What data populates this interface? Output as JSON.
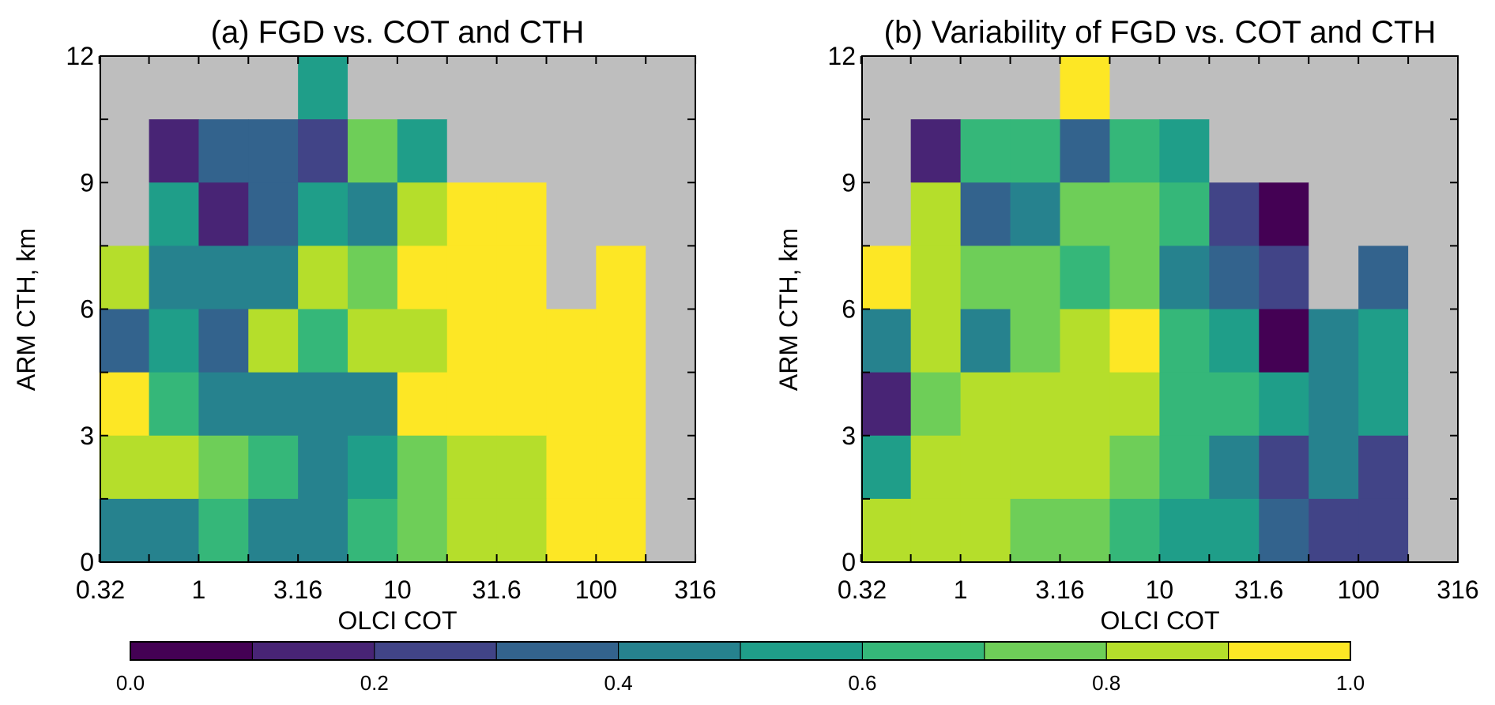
{
  "figure": {
    "colorbar": {
      "ticks": [
        0.0,
        0.2,
        0.4,
        0.6,
        0.8,
        1.0
      ],
      "tick_labels": [
        "0.0",
        "0.2",
        "0.4",
        "0.6",
        "0.8",
        "1.0"
      ],
      "bins": [
        0.0,
        0.1,
        0.2,
        0.3,
        0.4,
        0.5,
        0.6,
        0.7,
        0.8,
        0.9,
        1.0
      ],
      "colors": [
        "#440154",
        "#482475",
        "#414487",
        "#33638d",
        "#26828e",
        "#1f9e89",
        "#35b779",
        "#6ece58",
        "#b5de2b",
        "#fde725"
      ],
      "missing_color": "#bebebe"
    }
  },
  "chart_data": [
    {
      "type": "heatmap",
      "title": "(a) FGD vs. COT and CTH",
      "xlabel": "OLCI COT",
      "ylabel": "ARM CTH, km",
      "x_scale": "log",
      "x_tick_values": [
        0.32,
        1,
        3.16,
        10,
        31.6,
        100,
        316
      ],
      "x_tick_labels": [
        "0.32",
        "1",
        "3.16",
        "10",
        "31.6",
        "100",
        "316"
      ],
      "x_bin_edges_log10": [
        -0.5,
        -0.25,
        0,
        0.25,
        0.5,
        0.75,
        1,
        1.25,
        1.5,
        1.75,
        2,
        2.25,
        2.5
      ],
      "y_tick_values": [
        0,
        3,
        6,
        9,
        12
      ],
      "y_tick_labels": [
        "0",
        "3",
        "6",
        "9",
        "12"
      ],
      "y_bin_edges": [
        0,
        1.5,
        3,
        4.5,
        6,
        7.5,
        9,
        10.5,
        12
      ],
      "xlim": [
        0.32,
        316
      ],
      "ylim": [
        0,
        12
      ],
      "value_range": [
        0,
        1
      ],
      "rows_top_to_bottom": [
        [
          null,
          null,
          null,
          null,
          0.55,
          null,
          null,
          null,
          null,
          null,
          null,
          null
        ],
        [
          null,
          0.15,
          0.35,
          0.35,
          0.25,
          0.75,
          0.55,
          null,
          null,
          null,
          null,
          null
        ],
        [
          null,
          0.55,
          0.15,
          0.35,
          0.55,
          0.45,
          0.85,
          0.95,
          0.95,
          null,
          null,
          null
        ],
        [
          0.85,
          0.45,
          0.45,
          0.45,
          0.85,
          0.75,
          0.95,
          0.95,
          0.95,
          null,
          0.95,
          null
        ],
        [
          0.35,
          0.55,
          0.35,
          0.85,
          0.65,
          0.85,
          0.85,
          0.95,
          0.95,
          0.95,
          0.95,
          null
        ],
        [
          0.95,
          0.65,
          0.45,
          0.45,
          0.45,
          0.45,
          0.95,
          0.95,
          0.95,
          0.95,
          0.95,
          null
        ],
        [
          0.85,
          0.85,
          0.75,
          0.65,
          0.45,
          0.55,
          0.75,
          0.85,
          0.85,
          0.95,
          0.95,
          null
        ],
        [
          0.45,
          0.45,
          0.65,
          0.45,
          0.45,
          0.65,
          0.75,
          0.85,
          0.85,
          0.95,
          0.95,
          null
        ]
      ]
    },
    {
      "type": "heatmap",
      "title": "(b) Variability of FGD vs. COT and CTH",
      "xlabel": "OLCI COT",
      "ylabel": "ARM CTH, km",
      "x_scale": "log",
      "x_tick_values": [
        0.32,
        1,
        3.16,
        10,
        31.6,
        100,
        316
      ],
      "x_tick_labels": [
        "0.32",
        "1",
        "3.16",
        "10",
        "31.6",
        "100",
        "316"
      ],
      "x_bin_edges_log10": [
        -0.5,
        -0.25,
        0,
        0.25,
        0.5,
        0.75,
        1,
        1.25,
        1.5,
        1.75,
        2,
        2.25,
        2.5
      ],
      "y_tick_values": [
        0,
        3,
        6,
        9,
        12
      ],
      "y_tick_labels": [
        "0",
        "3",
        "6",
        "9",
        "12"
      ],
      "y_bin_edges": [
        0,
        1.5,
        3,
        4.5,
        6,
        7.5,
        9,
        10.5,
        12
      ],
      "xlim": [
        0.32,
        316
      ],
      "ylim": [
        0,
        12
      ],
      "value_range": [
        0,
        1
      ],
      "rows_top_to_bottom": [
        [
          null,
          null,
          null,
          null,
          0.95,
          null,
          null,
          null,
          null,
          null,
          null,
          null
        ],
        [
          null,
          0.15,
          0.65,
          0.65,
          0.35,
          0.65,
          0.55,
          null,
          null,
          null,
          null,
          null
        ],
        [
          null,
          0.85,
          0.35,
          0.45,
          0.75,
          0.75,
          0.65,
          0.25,
          0.05,
          null,
          null,
          null
        ],
        [
          0.95,
          0.85,
          0.75,
          0.75,
          0.65,
          0.75,
          0.45,
          0.35,
          0.25,
          null,
          0.35,
          null
        ],
        [
          0.45,
          0.85,
          0.45,
          0.75,
          0.85,
          0.95,
          0.65,
          0.55,
          0.05,
          0.45,
          0.55,
          null
        ],
        [
          0.15,
          0.75,
          0.85,
          0.85,
          0.85,
          0.85,
          0.65,
          0.65,
          0.55,
          0.45,
          0.55,
          null
        ],
        [
          0.55,
          0.85,
          0.85,
          0.85,
          0.85,
          0.75,
          0.65,
          0.45,
          0.25,
          0.45,
          0.25,
          null
        ],
        [
          0.85,
          0.85,
          0.85,
          0.75,
          0.75,
          0.65,
          0.55,
          0.55,
          0.35,
          0.25,
          0.25,
          null
        ]
      ]
    }
  ]
}
